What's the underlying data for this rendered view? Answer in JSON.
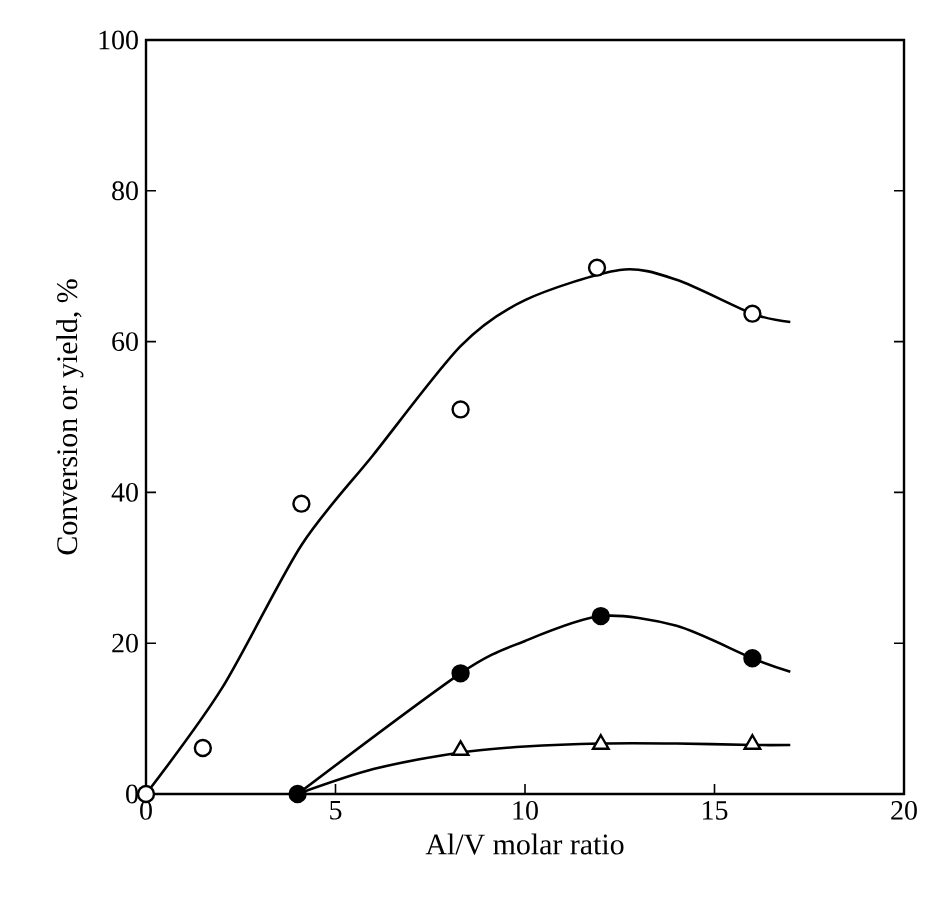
{
  "chart_data": {
    "type": "scatter",
    "xlabel": "Al/V molar ratio",
    "ylabel": "Conversion or yield, %",
    "xlim": [
      0,
      20
    ],
    "ylim": [
      0,
      100
    ],
    "xticks": [
      0,
      5,
      10,
      15,
      20
    ],
    "yticks": [
      0,
      20,
      40,
      60,
      80,
      100
    ],
    "grid": false,
    "series": [
      {
        "marker": "circle",
        "color": "#ffffff",
        "x": [
          0,
          1.5,
          4.1,
          8.3,
          11.9,
          16
        ],
        "values": [
          0,
          6.1,
          38.5,
          51,
          69.8,
          63.7
        ]
      },
      {
        "marker": "circle",
        "color": "#000000",
        "x": [
          4,
          8.3,
          12,
          16
        ],
        "values": [
          0,
          16,
          23.6,
          18
        ]
      },
      {
        "marker": "triangle",
        "color": "#ffffff",
        "x": [
          8.3,
          12,
          16
        ],
        "values": [
          5.8,
          6.6,
          6.6
        ]
      },
      {
        "type": "line",
        "marker": "none",
        "color": "#000000",
        "x": [
          0,
          2,
          4.1,
          6,
          8.3,
          10,
          12.5,
          14,
          16,
          17
        ],
        "values": [
          0,
          14,
          33,
          45,
          59.4,
          65.5,
          69.5,
          68.2,
          63.7,
          62.6
        ]
      },
      {
        "type": "line",
        "marker": "none",
        "color": "#000000",
        "x": [
          4,
          8.3,
          10,
          12,
          14,
          16,
          17
        ],
        "values": [
          0,
          16,
          20.3,
          23.6,
          22.3,
          18,
          16.2
        ]
      },
      {
        "type": "line",
        "marker": "none",
        "color": "#000000",
        "x": [
          4,
          6,
          8.3,
          10,
          12,
          14,
          16,
          17
        ],
        "values": [
          0,
          3.3,
          5.5,
          6.3,
          6.7,
          6.7,
          6.5,
          6.5
        ]
      }
    ]
  }
}
